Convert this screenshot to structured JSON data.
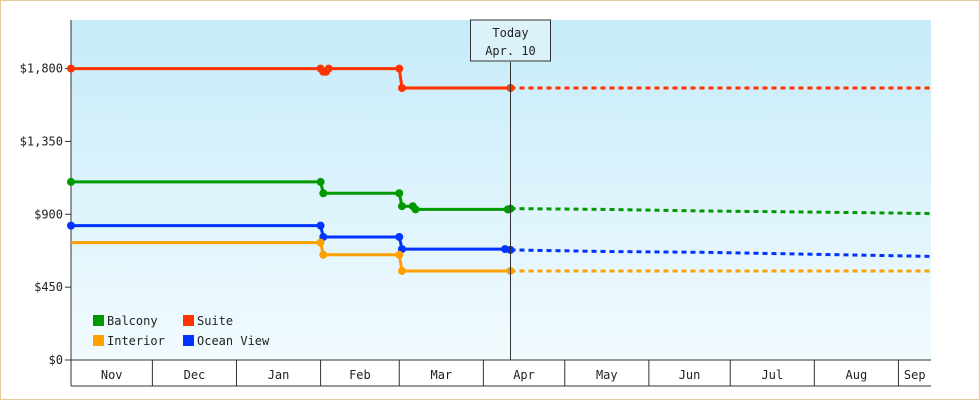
{
  "chart_data": {
    "type": "line",
    "ylim": [
      0,
      2100
    ],
    "y_ticks": [
      {
        "value": 0,
        "label": "$0"
      },
      {
        "value": 450,
        "label": "$450"
      },
      {
        "value": 900,
        "label": "$900"
      },
      {
        "value": 1350,
        "label": "$1,350"
      },
      {
        "value": 1800,
        "label": "$1,800"
      }
    ],
    "x_range": [
      "2023-10-31",
      "2024-09-12"
    ],
    "x_ticks": [
      {
        "label": "Nov",
        "start": "2023-10-31",
        "end": "2023-11-30"
      },
      {
        "label": "Dec",
        "start": "2023-11-30",
        "end": "2023-12-31"
      },
      {
        "label": "Jan",
        "start": "2023-12-31",
        "end": "2024-01-31"
      },
      {
        "label": "Feb",
        "start": "2024-01-31",
        "end": "2024-02-29"
      },
      {
        "label": "Mar",
        "start": "2024-02-29",
        "end": "2024-03-31"
      },
      {
        "label": "Apr",
        "start": "2024-03-31",
        "end": "2024-04-30"
      },
      {
        "label": "May",
        "start": "2024-04-30",
        "end": "2024-05-31"
      },
      {
        "label": "Jun",
        "start": "2024-05-31",
        "end": "2024-06-30"
      },
      {
        "label": "Jul",
        "start": "2024-06-30",
        "end": "2024-07-31"
      },
      {
        "label": "Aug",
        "start": "2024-07-31",
        "end": "2024-08-31"
      },
      {
        "label": "Sep",
        "start": "2024-08-31",
        "end": "2024-09-12"
      }
    ],
    "today": {
      "date": "2024-04-10",
      "label_line1": "Today",
      "label_line2": "Apr. 10"
    },
    "grid": false,
    "legend": {
      "position": "bottom-left",
      "columns": 2
    },
    "background": {
      "top": "#c6ebf9",
      "bottom": "#f2fbfe"
    },
    "series": [
      {
        "name": "Suite",
        "color": "#ff3300",
        "points": [
          {
            "x": "2023-10-31",
            "y": 1800,
            "marker": true
          },
          {
            "x": "2024-01-31",
            "y": 1800,
            "marker": true
          },
          {
            "x": "2024-02-01",
            "y": 1780,
            "marker": true
          },
          {
            "x": "2024-02-02",
            "y": 1780,
            "marker": true
          },
          {
            "x": "2024-02-03",
            "y": 1800,
            "marker": true
          },
          {
            "x": "2024-02-29",
            "y": 1800,
            "marker": true
          },
          {
            "x": "2024-03-01",
            "y": 1680,
            "marker": true
          },
          {
            "x": "2024-04-10",
            "y": 1680,
            "marker": true
          }
        ],
        "forecast": [
          {
            "x": "2024-04-10",
            "y": 1680
          },
          {
            "x": "2024-09-12",
            "y": 1680
          }
        ]
      },
      {
        "name": "Balcony",
        "color": "#009900",
        "points": [
          {
            "x": "2023-10-31",
            "y": 1100,
            "marker": true
          },
          {
            "x": "2024-01-31",
            "y": 1100,
            "marker": true
          },
          {
            "x": "2024-02-01",
            "y": 1030,
            "marker": true
          },
          {
            "x": "2024-02-29",
            "y": 1030,
            "marker": true
          },
          {
            "x": "2024-03-01",
            "y": 950,
            "marker": true
          },
          {
            "x": "2024-03-05",
            "y": 950,
            "marker": true
          },
          {
            "x": "2024-03-06",
            "y": 930,
            "marker": true
          },
          {
            "x": "2024-04-09",
            "y": 930,
            "marker": true
          },
          {
            "x": "2024-04-10",
            "y": 935,
            "marker": true
          }
        ],
        "forecast": [
          {
            "x": "2024-04-10",
            "y": 935
          },
          {
            "x": "2024-05-15",
            "y": 930
          },
          {
            "x": "2024-06-20",
            "y": 920
          },
          {
            "x": "2024-07-25",
            "y": 915
          },
          {
            "x": "2024-09-12",
            "y": 905
          }
        ]
      },
      {
        "name": "Ocean View",
        "color": "#0033ff",
        "points": [
          {
            "x": "2023-10-31",
            "y": 830,
            "marker": true
          },
          {
            "x": "2024-01-31",
            "y": 830,
            "marker": true
          },
          {
            "x": "2024-02-01",
            "y": 760,
            "marker": true
          },
          {
            "x": "2024-02-29",
            "y": 760,
            "marker": true
          },
          {
            "x": "2024-03-01",
            "y": 685,
            "marker": true
          },
          {
            "x": "2024-04-08",
            "y": 685,
            "marker": true
          },
          {
            "x": "2024-04-10",
            "y": 680,
            "marker": true
          }
        ],
        "forecast": [
          {
            "x": "2024-04-10",
            "y": 680
          },
          {
            "x": "2024-05-15",
            "y": 670
          },
          {
            "x": "2024-06-20",
            "y": 665
          },
          {
            "x": "2024-07-25",
            "y": 655
          },
          {
            "x": "2024-09-12",
            "y": 640
          }
        ]
      },
      {
        "name": "Interior",
        "color": "#ff9f00",
        "points": [
          {
            "x": "2023-10-31",
            "y": 725,
            "marker": false
          },
          {
            "x": "2024-01-31",
            "y": 725,
            "marker": true
          },
          {
            "x": "2024-02-01",
            "y": 650,
            "marker": true
          },
          {
            "x": "2024-02-29",
            "y": 650,
            "marker": true
          },
          {
            "x": "2024-03-01",
            "y": 550,
            "marker": true
          },
          {
            "x": "2024-04-10",
            "y": 550,
            "marker": true
          }
        ],
        "forecast": [
          {
            "x": "2024-04-10",
            "y": 550
          },
          {
            "x": "2024-09-12",
            "y": 550
          }
        ]
      }
    ],
    "legend_order": [
      "Balcony",
      "Suite",
      "Interior",
      "Ocean View"
    ]
  }
}
